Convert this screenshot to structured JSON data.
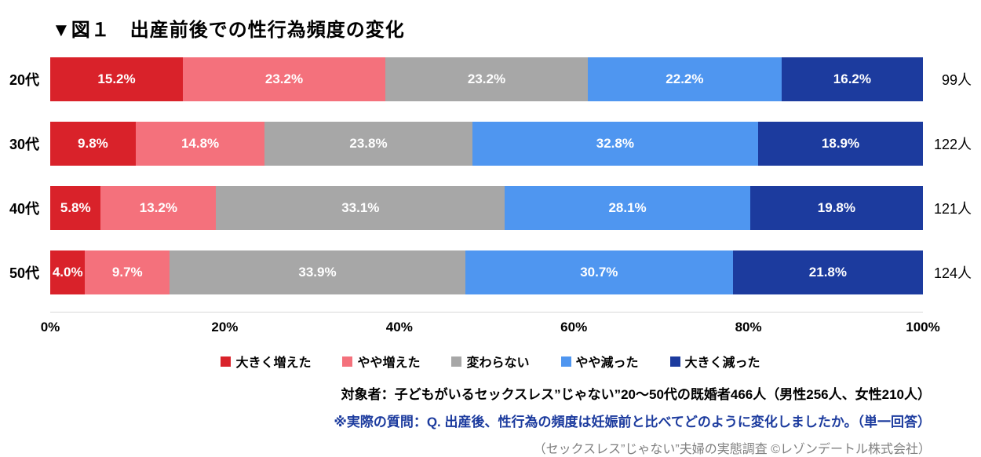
{
  "title": "▼図１　出産前後での性行為頻度の変化",
  "chart_data": {
    "type": "bar",
    "stacked": true,
    "orientation": "horizontal",
    "categories": [
      "20代",
      "30代",
      "40代",
      "50代"
    ],
    "category_counts": [
      "99人",
      "122人",
      "121人",
      "124人"
    ],
    "series": [
      {
        "name": "大きく増えた",
        "color": "#d9222a",
        "values": [
          15.2,
          9.8,
          5.8,
          4.0
        ]
      },
      {
        "name": "やや増えた",
        "color": "#f4717c",
        "values": [
          23.2,
          14.8,
          13.2,
          9.7
        ]
      },
      {
        "name": "変わらない",
        "color": "#a7a7a7",
        "values": [
          23.2,
          23.8,
          33.1,
          33.9
        ]
      },
      {
        "name": "やや減った",
        "color": "#4f96f0",
        "values": [
          22.2,
          32.8,
          28.1,
          30.7
        ]
      },
      {
        "name": "大きく減った",
        "color": "#1c3b9e",
        "values": [
          16.2,
          18.9,
          19.8,
          21.8
        ]
      }
    ],
    "x_ticks": [
      {
        "pos": 0,
        "label": "0%"
      },
      {
        "pos": 20,
        "label": "20%"
      },
      {
        "pos": 40,
        "label": "40%"
      },
      {
        "pos": 60,
        "label": "60%"
      },
      {
        "pos": 80,
        "label": "80%"
      },
      {
        "pos": 100,
        "label": "100%"
      }
    ],
    "xlim": [
      0,
      100
    ],
    "legend_position": "bottom",
    "value_label_suffix": "%"
  },
  "notes": {
    "audience": "対象者：子どもがいるセックスレス”じゃない”20〜50代の既婚者466人（男性256人、女性210人）",
    "question": "※実際の質問：Q. 出産後、性行為の頻度は妊娠前と比べてどのように変化しましたか。（単一回答）",
    "source": "（セックスレス”じゃない”夫婦の実態調査 ©レゾンデートル株式会社）"
  }
}
